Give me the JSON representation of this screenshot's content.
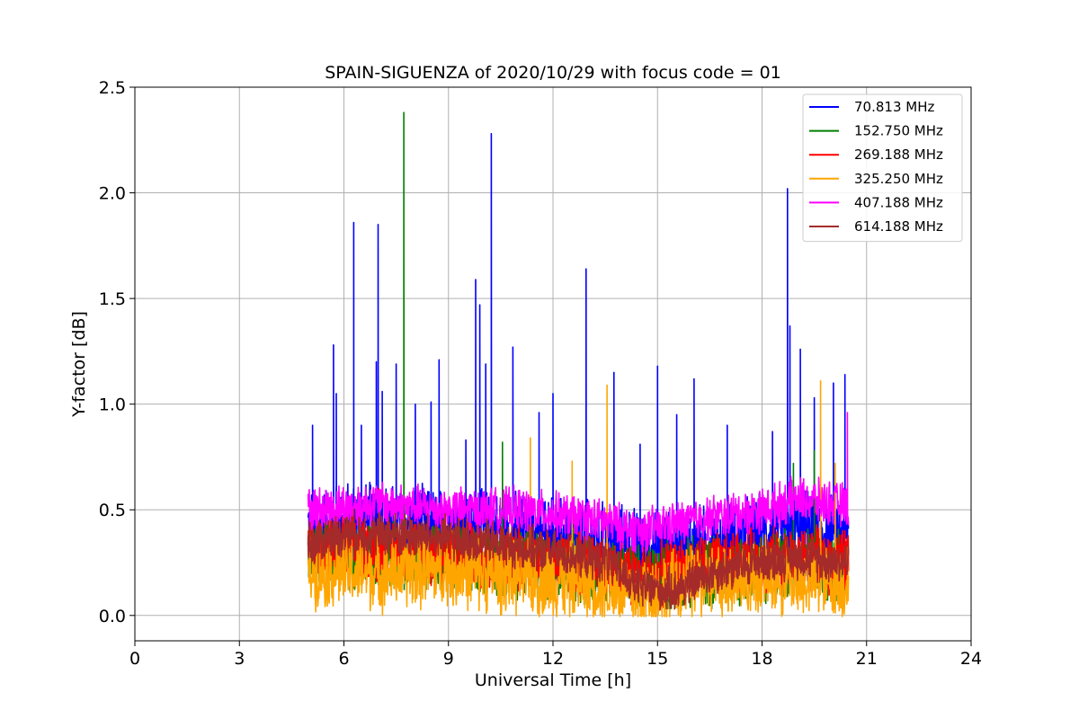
{
  "chart_data": {
    "type": "line",
    "title": "SPAIN-SIGUENZA of 2020/10/29 with focus code = 01",
    "xlabel": "Universal Time [h]",
    "ylabel": "Y-factor [dB]",
    "xlim": [
      0,
      24
    ],
    "ylim": [
      -0.12,
      2.5
    ],
    "xticks": [
      0,
      3,
      6,
      9,
      12,
      15,
      18,
      21,
      24
    ],
    "xtick_labels": [
      "0",
      "3",
      "6",
      "9",
      "12",
      "15",
      "18",
      "21",
      "24"
    ],
    "yticks": [
      0.0,
      0.5,
      1.0,
      1.5,
      2.0,
      2.5
    ],
    "ytick_labels": [
      "0.0",
      "0.5",
      "1.0",
      "1.5",
      "2.0",
      "2.5"
    ],
    "grid": true,
    "legend_position": "top-right",
    "series": [
      {
        "name": " 70.813 MHz",
        "color": "#0000ff",
        "baseline": [
          [
            5.0,
            0.42
          ],
          [
            6.5,
            0.45
          ],
          [
            8.0,
            0.42
          ],
          [
            10.0,
            0.4
          ],
          [
            12.0,
            0.38
          ],
          [
            14.0,
            0.33
          ],
          [
            15.0,
            0.3
          ],
          [
            16.5,
            0.34
          ],
          [
            18.0,
            0.38
          ],
          [
            19.5,
            0.4
          ],
          [
            20.5,
            0.38
          ]
        ],
        "spread": 0.18,
        "peaks": [
          [
            5.1,
            0.9
          ],
          [
            5.7,
            1.28
          ],
          [
            5.78,
            1.05
          ],
          [
            6.28,
            1.86
          ],
          [
            6.5,
            0.9
          ],
          [
            6.93,
            1.2
          ],
          [
            6.98,
            1.85
          ],
          [
            7.1,
            1.06
          ],
          [
            7.5,
            1.19
          ],
          [
            8.05,
            1.0
          ],
          [
            8.5,
            1.01
          ],
          [
            8.73,
            1.21
          ],
          [
            9.5,
            0.83
          ],
          [
            9.78,
            1.59
          ],
          [
            9.9,
            1.47
          ],
          [
            10.07,
            1.19
          ],
          [
            10.23,
            2.28
          ],
          [
            10.85,
            1.27
          ],
          [
            11.6,
            0.96
          ],
          [
            12.0,
            1.05
          ],
          [
            12.95,
            1.64
          ],
          [
            13.75,
            1.15
          ],
          [
            14.5,
            0.81
          ],
          [
            15.0,
            1.18
          ],
          [
            15.55,
            0.95
          ],
          [
            16.05,
            1.12
          ],
          [
            17.0,
            0.9
          ],
          [
            18.3,
            0.87
          ],
          [
            18.73,
            2.02
          ],
          [
            18.8,
            1.37
          ],
          [
            19.1,
            1.26
          ],
          [
            19.5,
            1.03
          ],
          [
            20.05,
            1.1
          ],
          [
            20.38,
            1.14
          ]
        ]
      },
      {
        "name": "152.750 MHz",
        "color": "#008000",
        "baseline": [
          [
            5.0,
            0.3
          ],
          [
            8.0,
            0.28
          ],
          [
            11.0,
            0.25
          ],
          [
            13.0,
            0.22
          ],
          [
            14.5,
            0.18
          ],
          [
            16.0,
            0.2
          ],
          [
            18.0,
            0.24
          ],
          [
            20.5,
            0.25
          ]
        ],
        "spread": 0.16,
        "peaks": [
          [
            7.72,
            2.38
          ],
          [
            10.55,
            0.82
          ],
          [
            18.9,
            0.72
          ],
          [
            19.5,
            0.78
          ]
        ]
      },
      {
        "name": "269.188 MHz",
        "color": "#ff0000",
        "baseline": [
          [
            5.0,
            0.32
          ],
          [
            8.0,
            0.3
          ],
          [
            11.0,
            0.27
          ],
          [
            13.0,
            0.24
          ],
          [
            14.5,
            0.18
          ],
          [
            16.0,
            0.22
          ],
          [
            18.0,
            0.26
          ],
          [
            20.5,
            0.26
          ]
        ],
        "spread": 0.15,
        "peaks": [
          [
            7.0,
            0.6
          ]
        ]
      },
      {
        "name": "325.250 MHz",
        "color": "#ffa500",
        "baseline": [
          [
            5.0,
            0.22
          ],
          [
            7.0,
            0.2
          ],
          [
            9.0,
            0.22
          ],
          [
            11.0,
            0.18
          ],
          [
            13.0,
            0.16
          ],
          [
            14.5,
            0.1
          ],
          [
            16.0,
            0.15
          ],
          [
            18.0,
            0.18
          ],
          [
            20.5,
            0.16
          ]
        ],
        "spread": 0.17,
        "peaks": [
          [
            11.35,
            0.84
          ],
          [
            12.55,
            0.73
          ],
          [
            13.55,
            1.09
          ],
          [
            19.68,
            1.11
          ],
          [
            20.1,
            0.72
          ]
        ]
      },
      {
        "name": "407.188 MHz",
        "color": "#ff00ff",
        "baseline": [
          [
            5.0,
            0.5
          ],
          [
            7.0,
            0.53
          ],
          [
            9.0,
            0.5
          ],
          [
            11.0,
            0.5
          ],
          [
            13.0,
            0.46
          ],
          [
            14.5,
            0.4
          ],
          [
            16.0,
            0.45
          ],
          [
            18.0,
            0.5
          ],
          [
            19.0,
            0.55
          ],
          [
            20.5,
            0.52
          ]
        ],
        "spread": 0.1,
        "peaks": [
          [
            20.45,
            0.96
          ]
        ]
      },
      {
        "name": "614.188 MHz",
        "color": "#a52a2a",
        "baseline": [
          [
            5.0,
            0.34
          ],
          [
            6.0,
            0.39
          ],
          [
            8.0,
            0.38
          ],
          [
            10.0,
            0.35
          ],
          [
            12.0,
            0.3
          ],
          [
            13.5,
            0.26
          ],
          [
            14.5,
            0.13
          ],
          [
            15.5,
            0.12
          ],
          [
            16.5,
            0.2
          ],
          [
            18.0,
            0.26
          ],
          [
            19.0,
            0.28
          ],
          [
            20.5,
            0.25
          ]
        ],
        "spread": 0.1,
        "peaks": []
      }
    ]
  }
}
